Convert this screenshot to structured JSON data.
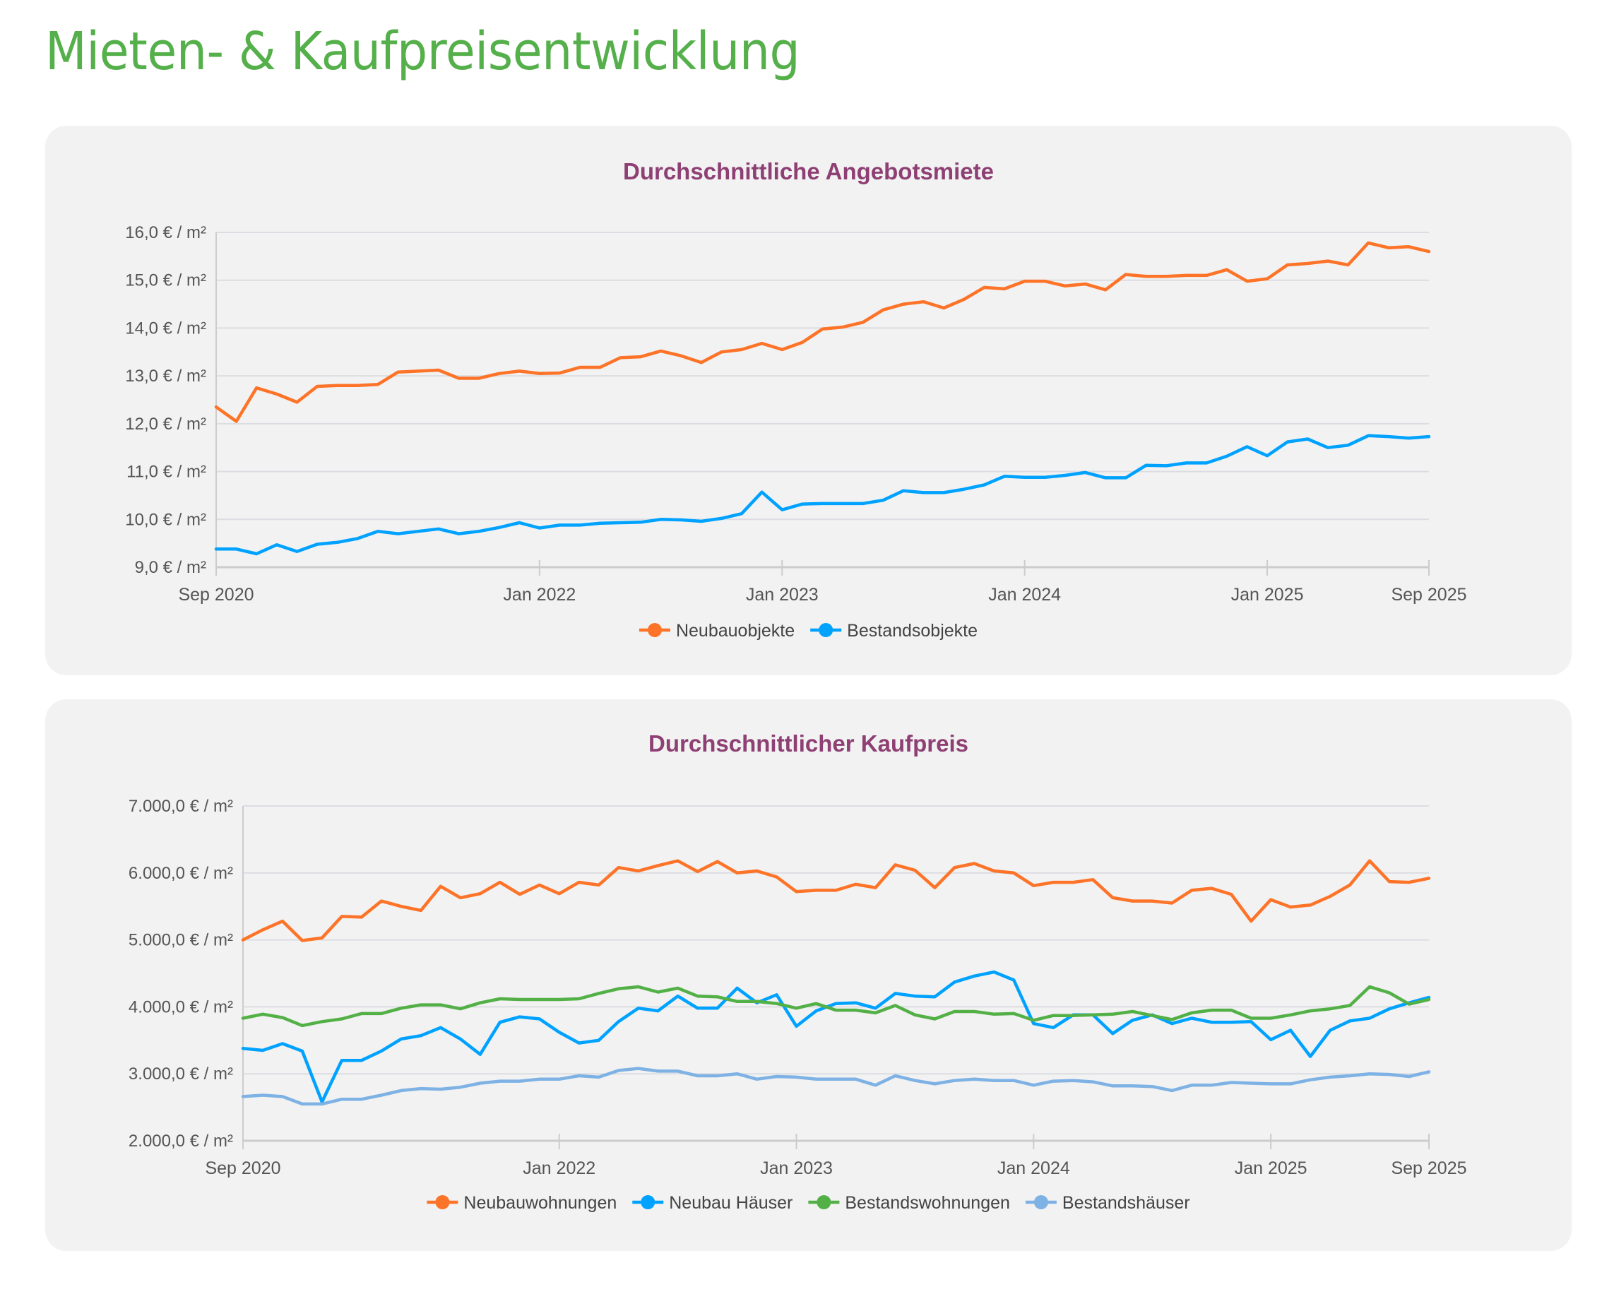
{
  "page_title": "Mieten- & Kaufpreisentwicklung",
  "chart_data": [
    {
      "type": "line",
      "title": "Durchschnittliche Angebotsmiete",
      "xlabel": "",
      "ylabel": "",
      "ylim": [
        9,
        16
      ],
      "yticks": [
        9,
        10,
        11,
        12,
        13,
        14,
        15,
        16
      ],
      "ytick_labels": [
        "9,0 € / m²",
        "10,0 € / m²",
        "11,0 € / m²",
        "12,0 € / m²",
        "13,0 € / m²",
        "14,0 € / m²",
        "15,0 € / m²",
        "16,0 € / m²"
      ],
      "xticks": [
        "2020-09",
        "2022-01",
        "2023-01",
        "2024-01",
        "2025-01",
        "2025-09"
      ],
      "xtick_labels": [
        "Sep 2020",
        "Jan 2022",
        "Jan 2023",
        "Jan 2024",
        "Jan 2025",
        "Sep 2025"
      ],
      "grid": true,
      "legend": "bottom-center",
      "x": [
        "2020-09",
        "2020-10",
        "2020-11",
        "2020-12",
        "2021-01",
        "2021-02",
        "2021-03",
        "2021-04",
        "2021-05",
        "2021-06",
        "2021-07",
        "2021-08",
        "2021-09",
        "2021-10",
        "2021-11",
        "2021-12",
        "2022-01",
        "2022-02",
        "2022-03",
        "2022-04",
        "2022-05",
        "2022-06",
        "2022-07",
        "2022-08",
        "2022-09",
        "2022-10",
        "2022-11",
        "2022-12",
        "2023-01",
        "2023-02",
        "2023-03",
        "2023-04",
        "2023-05",
        "2023-06",
        "2023-07",
        "2023-08",
        "2023-09",
        "2023-10",
        "2023-11",
        "2023-12",
        "2024-01",
        "2024-02",
        "2024-03",
        "2024-04",
        "2024-05",
        "2024-06",
        "2024-07",
        "2024-08",
        "2024-09",
        "2024-10",
        "2024-11",
        "2024-12",
        "2025-01",
        "2025-02",
        "2025-03",
        "2025-04",
        "2025-05",
        "2025-06",
        "2025-07",
        "2025-08",
        "2025-09"
      ],
      "series": [
        {
          "name": "Neubauobjekte",
          "color": "#fd7328",
          "values": [
            12.35,
            12.05,
            12.75,
            12.62,
            12.45,
            12.78,
            12.8,
            12.8,
            12.82,
            13.08,
            13.1,
            13.12,
            12.95,
            12.95,
            13.05,
            13.1,
            13.05,
            13.06,
            13.18,
            13.18,
            13.38,
            13.4,
            13.52,
            13.42,
            13.28,
            13.5,
            13.55,
            13.68,
            13.55,
            13.7,
            13.98,
            14.02,
            14.12,
            14.38,
            14.5,
            14.55,
            14.42,
            14.6,
            14.85,
            14.82,
            14.98,
            14.98,
            14.88,
            14.92,
            14.8,
            15.12,
            15.08,
            15.08,
            15.1,
            15.1,
            15.22,
            14.98,
            15.03,
            15.32,
            15.35,
            15.4,
            15.32,
            15.78,
            15.68,
            15.7,
            15.6
          ]
        },
        {
          "name": "Bestandsobjekte",
          "color": "#00a2ff",
          "values": [
            9.38,
            9.38,
            9.28,
            9.47,
            9.33,
            9.48,
            9.52,
            9.6,
            9.75,
            9.7,
            9.75,
            9.8,
            9.7,
            9.75,
            9.83,
            9.93,
            9.82,
            9.88,
            9.88,
            9.92,
            9.93,
            9.94,
            10.0,
            9.99,
            9.96,
            10.02,
            10.12,
            10.57,
            10.2,
            10.32,
            10.33,
            10.33,
            10.33,
            10.4,
            10.6,
            10.56,
            10.56,
            10.63,
            10.72,
            10.9,
            10.88,
            10.88,
            10.92,
            10.98,
            10.87,
            10.87,
            11.13,
            11.12,
            11.18,
            11.18,
            11.32,
            11.52,
            11.33,
            11.62,
            11.68,
            11.5,
            11.55,
            11.75,
            11.73,
            11.7,
            11.73
          ]
        }
      ]
    },
    {
      "type": "line",
      "title": "Durchschnittlicher Kaufpreis",
      "xlabel": "",
      "ylabel": "",
      "ylim": [
        2000,
        7000
      ],
      "yticks": [
        2000,
        3000,
        4000,
        5000,
        6000,
        7000
      ],
      "ytick_labels": [
        "2.000,0 € / m²",
        "3.000,0 € / m²",
        "4.000,0 € / m²",
        "5.000,0 € / m²",
        "6.000,0 € / m²",
        "7.000,0 € / m²"
      ],
      "xticks": [
        "2020-09",
        "2022-01",
        "2023-01",
        "2024-01",
        "2025-01",
        "2025-09"
      ],
      "xtick_labels": [
        "Sep 2020",
        "Jan 2022",
        "Jan 2023",
        "Jan 2024",
        "Jan 2025",
        "Sep 2025"
      ],
      "grid": true,
      "legend": "bottom-center",
      "x": [
        "2020-09",
        "2020-10",
        "2020-11",
        "2020-12",
        "2021-01",
        "2021-02",
        "2021-03",
        "2021-04",
        "2021-05",
        "2021-06",
        "2021-07",
        "2021-08",
        "2021-09",
        "2021-10",
        "2021-11",
        "2021-12",
        "2022-01",
        "2022-02",
        "2022-03",
        "2022-04",
        "2022-05",
        "2022-06",
        "2022-07",
        "2022-08",
        "2022-09",
        "2022-10",
        "2022-11",
        "2022-12",
        "2023-01",
        "2023-02",
        "2023-03",
        "2023-04",
        "2023-05",
        "2023-06",
        "2023-07",
        "2023-08",
        "2023-09",
        "2023-10",
        "2023-11",
        "2023-12",
        "2024-01",
        "2024-02",
        "2024-03",
        "2024-04",
        "2024-05",
        "2024-06",
        "2024-07",
        "2024-08",
        "2024-09",
        "2024-10",
        "2024-11",
        "2024-12",
        "2025-01",
        "2025-02",
        "2025-03",
        "2025-04",
        "2025-05",
        "2025-06",
        "2025-07",
        "2025-08",
        "2025-09"
      ],
      "series": [
        {
          "name": "Neubauwohnungen",
          "color": "#fd7328",
          "values": [
            5000,
            5150,
            5280,
            4990,
            5030,
            5350,
            5340,
            5580,
            5500,
            5440,
            5800,
            5630,
            5690,
            5860,
            5680,
            5820,
            5690,
            5860,
            5820,
            6080,
            6030,
            6110,
            6180,
            6020,
            6170,
            6000,
            6030,
            5940,
            5720,
            5740,
            5740,
            5830,
            5780,
            6120,
            6040,
            5780,
            6080,
            6140,
            6030,
            6000,
            5810,
            5860,
            5860,
            5900,
            5630,
            5580,
            5580,
            5550,
            5740,
            5770,
            5680,
            5280,
            5600,
            5490,
            5520,
            5650,
            5820,
            6180,
            5870,
            5860,
            5920
          ]
        },
        {
          "name": "Neubau Häuser",
          "color": "#00a2ff",
          "values": [
            3380,
            3350,
            3450,
            3340,
            2580,
            3200,
            3200,
            3340,
            3520,
            3570,
            3690,
            3520,
            3290,
            3770,
            3850,
            3820,
            3620,
            3460,
            3500,
            3780,
            3980,
            3940,
            4160,
            3980,
            3980,
            4280,
            4060,
            4180,
            3710,
            3940,
            4050,
            4060,
            3980,
            4200,
            4160,
            4150,
            4370,
            4460,
            4520,
            4400,
            3750,
            3690,
            3880,
            3880,
            3600,
            3800,
            3880,
            3750,
            3830,
            3770,
            3770,
            3780,
            3510,
            3650,
            3260,
            3650,
            3790,
            3830,
            3970,
            4060,
            4140
          ]
        },
        {
          "name": "Bestandswohnungen",
          "color": "#53b047",
          "values": [
            3830,
            3890,
            3840,
            3720,
            3780,
            3820,
            3900,
            3900,
            3980,
            4030,
            4030,
            3970,
            4060,
            4120,
            4110,
            4110,
            4110,
            4120,
            4200,
            4270,
            4300,
            4220,
            4280,
            4160,
            4150,
            4080,
            4080,
            4050,
            3980,
            4050,
            3950,
            3950,
            3910,
            4020,
            3880,
            3820,
            3930,
            3930,
            3890,
            3900,
            3800,
            3870,
            3870,
            3880,
            3890,
            3930,
            3870,
            3810,
            3910,
            3950,
            3950,
            3830,
            3830,
            3880,
            3940,
            3970,
            4020,
            4300,
            4210,
            4040,
            4110
          ]
        },
        {
          "name": "Bestandshäuser",
          "color": "#7eb2e4",
          "values": [
            2660,
            2680,
            2660,
            2550,
            2550,
            2620,
            2620,
            2680,
            2750,
            2780,
            2770,
            2800,
            2860,
            2890,
            2890,
            2920,
            2920,
            2970,
            2950,
            3050,
            3080,
            3040,
            3040,
            2970,
            2970,
            3000,
            2920,
            2960,
            2950,
            2920,
            2920,
            2920,
            2830,
            2970,
            2900,
            2850,
            2900,
            2920,
            2900,
            2900,
            2830,
            2890,
            2900,
            2880,
            2820,
            2820,
            2810,
            2750,
            2830,
            2830,
            2870,
            2860,
            2850,
            2850,
            2910,
            2950,
            2970,
            3000,
            2990,
            2960,
            3030
          ]
        }
      ]
    }
  ]
}
